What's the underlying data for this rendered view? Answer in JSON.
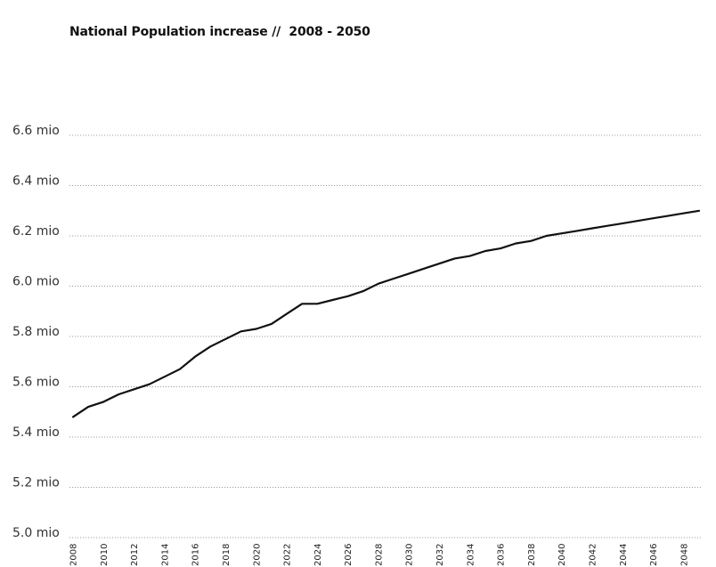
{
  "chart_data": {
    "type": "line",
    "title": "National Population increase //  2008 - 2050",
    "xlabel": "",
    "ylabel": "",
    "ylim": [
      5.0,
      6.6
    ],
    "xlim": [
      2008,
      2049
    ],
    "grid": true,
    "x_ticks": [
      "2008",
      "2010",
      "2012",
      "2014",
      "2016",
      "2018",
      "2020",
      "2022",
      "2024",
      "2026",
      "2028",
      "2030",
      "2032",
      "2034",
      "2036",
      "2038",
      "2040",
      "2042",
      "2044",
      "2046",
      "2048"
    ],
    "y_ticks": [
      {
        "value": 5.0,
        "label": "5.0 mio"
      },
      {
        "value": 5.2,
        "label": "5.2 mio"
      },
      {
        "value": 5.4,
        "label": "5.4 mio"
      },
      {
        "value": 5.6,
        "label": "5.6 mio"
      },
      {
        "value": 5.8,
        "label": "5.8 mio"
      },
      {
        "value": 6.0,
        "label": "6.0 mio"
      },
      {
        "value": 6.2,
        "label": "6.2 mio"
      },
      {
        "value": 6.4,
        "label": "6.4 mio"
      },
      {
        "value": 6.6,
        "label": "6.6 mio"
      }
    ],
    "series": [
      {
        "color": "#111111",
        "x": [
          2008,
          2009,
          2010,
          2011,
          2012,
          2013,
          2014,
          2015,
          2016,
          2017,
          2018,
          2019,
          2020,
          2021,
          2022,
          2023,
          2024,
          2025,
          2026,
          2027,
          2028,
          2029,
          2030,
          2031,
          2032,
          2033,
          2034,
          2035,
          2036,
          2037,
          2038,
          2039,
          2040,
          2041,
          2042,
          2043,
          2044,
          2045,
          2046,
          2047,
          2048,
          2049
        ],
        "values": [
          5.48,
          5.52,
          5.54,
          5.57,
          5.59,
          5.61,
          5.64,
          5.67,
          5.72,
          5.76,
          5.79,
          5.82,
          5.83,
          5.85,
          5.89,
          5.93,
          5.93,
          5.945,
          5.96,
          5.98,
          6.01,
          6.03,
          6.05,
          6.07,
          6.09,
          6.11,
          6.12,
          6.14,
          6.15,
          6.17,
          6.18,
          6.2,
          6.21,
          6.22,
          6.23,
          6.24,
          6.25,
          6.26,
          6.27,
          6.28,
          6.29,
          6.3
        ]
      }
    ]
  }
}
